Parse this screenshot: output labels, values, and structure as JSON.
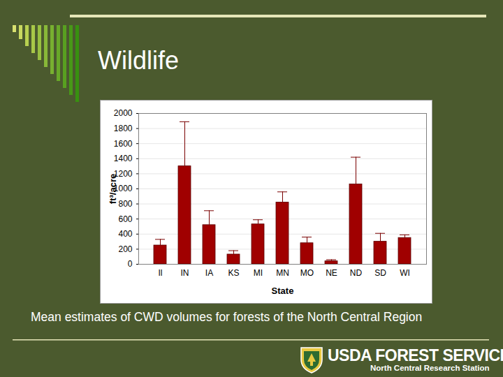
{
  "slide": {
    "title": "Wildlife",
    "caption": "Mean estimates of CWD volumes for forests of the North Central Region",
    "agency": "USDA FOREST SERVICE",
    "station": "North Central Research Station"
  },
  "chart_data": {
    "type": "bar",
    "categories": [
      "Il",
      "IN",
      "IA",
      "KS",
      "MI",
      "MN",
      "MO",
      "NE",
      "ND",
      "SD",
      "WI"
    ],
    "values": [
      250,
      1300,
      520,
      130,
      530,
      820,
      280,
      40,
      1060,
      300,
      350
    ],
    "errors": [
      80,
      590,
      190,
      50,
      60,
      140,
      80,
      20,
      360,
      110,
      40
    ],
    "color": "#a00000",
    "x_label": "State",
    "y_label": "ft³/acre",
    "ylim": [
      0,
      2000
    ],
    "yticks": [
      0,
      200,
      400,
      600,
      800,
      1000,
      1200,
      1400,
      1600,
      1800,
      2000
    ],
    "grid": true
  }
}
